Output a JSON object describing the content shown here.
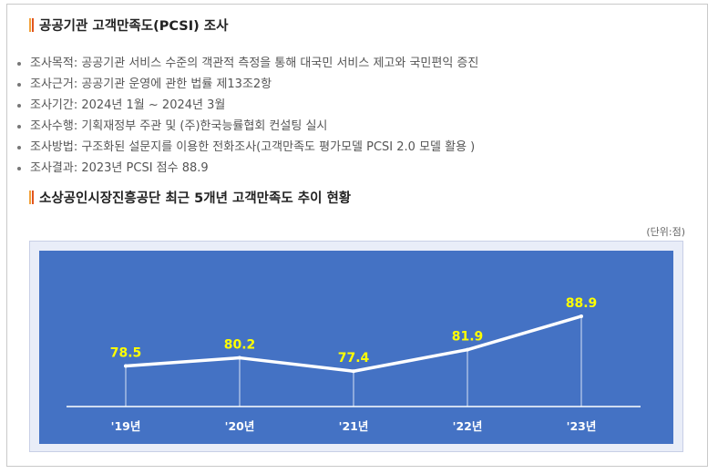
{
  "header": {
    "title": "공공기관 고객만족도(PCSI) 조사"
  },
  "info_items": [
    "조사목적: 공공기관 서비스 수준의 객관적 측정을 통해 대국민 서비스 제고와 국민편익 증진",
    "조사근거: 공공기관 운영에 관한 법률 제13조2항",
    "조사기간: 2024년 1월 ~ 2024년 3월",
    "조사수행: 기획재정부 주관 및 (주)한국능률협회 컨설팅 실시",
    "조사방법: 구조화된 설문지를 이용한 전화조사(고객만족도 평가모델 PCSI 2.0 모델 활용 )",
    "조사결과: 2023년 PCSI 점수 88.9"
  ],
  "chart_section": {
    "title": "소상공인시장진흥공단 최근 5개년 고객만족도 추이 현황",
    "unit": "(단위:점)"
  },
  "chart_data": {
    "type": "line",
    "categories": [
      "'19년",
      "'20년",
      "'21년",
      "'22년",
      "'23년"
    ],
    "values": [
      78.5,
      80.2,
      77.4,
      81.9,
      88.9
    ],
    "labels": [
      "78.5",
      "80.2",
      "77.4",
      "81.9",
      "88.9"
    ],
    "ylim": [
      70,
      95
    ],
    "grid": false,
    "colors": {
      "background": "#4472c4",
      "line": "#ffffff",
      "value_label": "#ffff00",
      "tick_label": "#ffffff"
    }
  }
}
